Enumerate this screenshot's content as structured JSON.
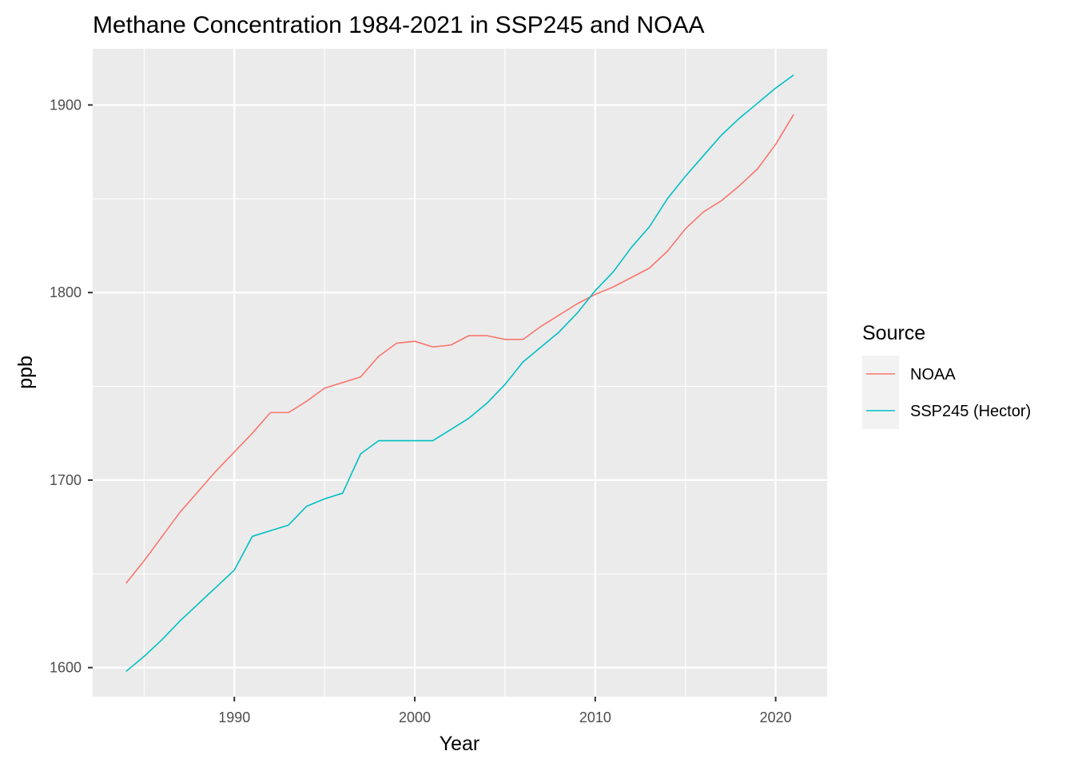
{
  "chart_data": {
    "type": "line",
    "title": "Methane Concentration 1984-2021 in SSP245 and NOAA",
    "xlabel": "Year",
    "ylabel": "ppb",
    "xlim": [
      1982.15,
      2022.85
    ],
    "ylim": [
      1584.5,
      1930.0
    ],
    "x_ticks": [
      1990,
      2000,
      2010,
      2020
    ],
    "y_ticks": [
      1600,
      1700,
      1800,
      1900
    ],
    "x_tick_labels": [
      "1990",
      "2000",
      "2010",
      "2020"
    ],
    "y_tick_labels": [
      "1600",
      "1700",
      "1800",
      "1900"
    ],
    "grid": true,
    "legend": {
      "title": "Source",
      "position": "right"
    },
    "series": [
      {
        "name": "NOAA",
        "color": "#f8766d",
        "x": [
          1984,
          1985,
          1986,
          1987,
          1988,
          1989,
          1990,
          1991,
          1992,
          1993,
          1994,
          1995,
          1996,
          1997,
          1998,
          1999,
          2000,
          2001,
          2002,
          2003,
          2004,
          2005,
          2006,
          2007,
          2008,
          2009,
          2010,
          2011,
          2012,
          2013,
          2014,
          2015,
          2016,
          2017,
          2018,
          2019,
          2020,
          2021
        ],
        "values": [
          1645,
          1657,
          1670,
          1683,
          1694,
          1705,
          1715,
          1725,
          1736,
          1736,
          1742,
          1749,
          1752,
          1755,
          1766,
          1773,
          1774,
          1771,
          1772,
          1777,
          1777,
          1775,
          1775,
          1782,
          1788,
          1794,
          1799,
          1803,
          1808,
          1813,
          1822,
          1834,
          1843,
          1849,
          1857,
          1866,
          1879,
          1895
        ]
      },
      {
        "name": "SSP245 (Hector)",
        "color": "#00bfc4",
        "x": [
          1984,
          1985,
          1986,
          1987,
          1988,
          1989,
          1990,
          1991,
          1992,
          1993,
          1994,
          1995,
          1996,
          1997,
          1998,
          1999,
          2000,
          2001,
          2002,
          2003,
          2004,
          2005,
          2006,
          2007,
          2008,
          2009,
          2010,
          2011,
          2012,
          2013,
          2014,
          2015,
          2016,
          2017,
          2018,
          2019,
          2020,
          2021
        ],
        "values": [
          1598,
          1606,
          1615,
          1625,
          1634,
          1643,
          1652,
          1670,
          1673,
          1676,
          1686,
          1690,
          1693,
          1714,
          1721,
          1721,
          1721,
          1721,
          1727,
          1733,
          1741,
          1751,
          1763,
          1771,
          1779,
          1789,
          1801,
          1811,
          1824,
          1835,
          1850,
          1862,
          1873,
          1884,
          1893,
          1901,
          1909,
          1916
        ]
      }
    ]
  }
}
